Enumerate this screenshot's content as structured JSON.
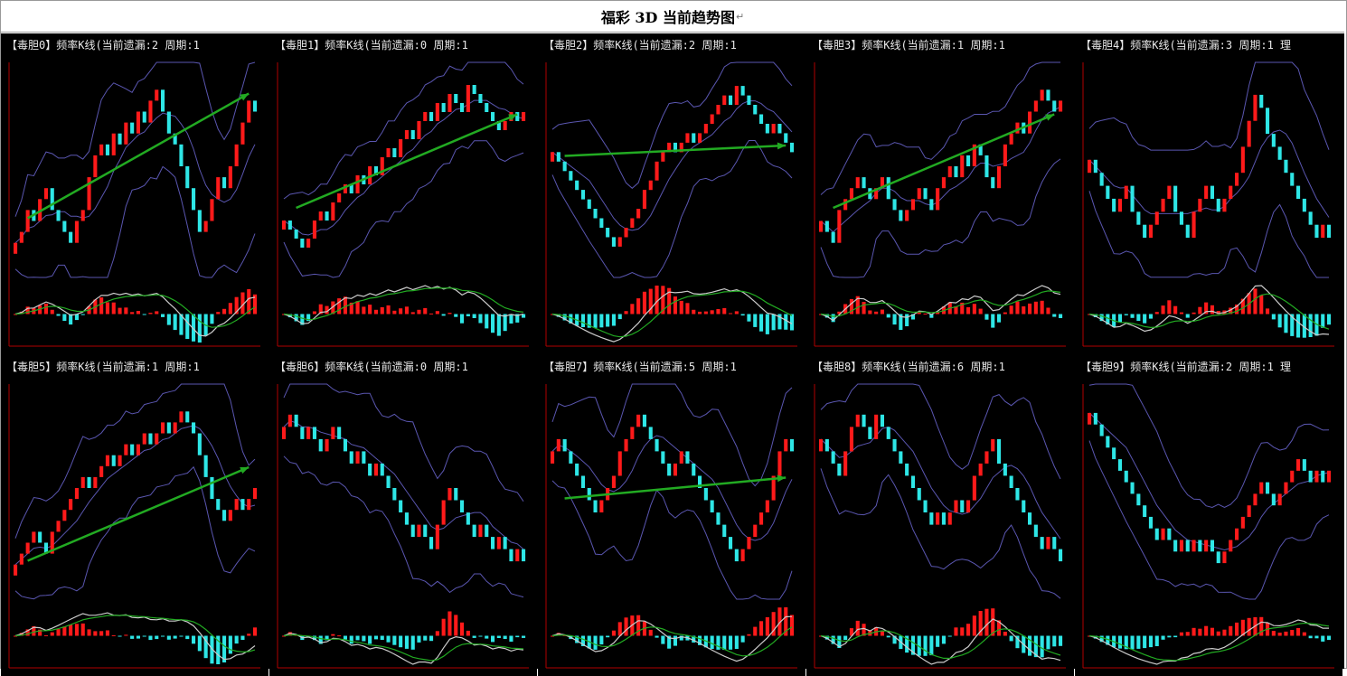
{
  "header": {
    "title": "福彩 3D 当前趋势图",
    "return_mark": "↵"
  },
  "colors": {
    "background": "#000000",
    "up": "#ff1a1a",
    "down": "#2ee6e6",
    "band": "#5a56b0",
    "trend_arrow": "#22aa22",
    "macd_dif": "#cccccc",
    "macd_dea": "#22aa22",
    "axis": "#b00000"
  },
  "chart_data": [
    {
      "type": "candlestick",
      "title": "【毒胆0】频率K线(当前遗漏:2 周期:1",
      "close": [
        3,
        4,
        6,
        5,
        7,
        8,
        6,
        5,
        4,
        3,
        5,
        6,
        9,
        11,
        12,
        11,
        13,
        12,
        14,
        13,
        15,
        14,
        16,
        17,
        15,
        13,
        12,
        10,
        8,
        6,
        4,
        5,
        7,
        9,
        8,
        10,
        12,
        14,
        16,
        15
      ],
      "trend_start": 0.25,
      "trend_end": 0.85
    },
    {
      "type": "candlestick",
      "title": "【毒胆1】频率K线(当前遗漏:0 周期:1",
      "close": [
        5,
        4,
        3,
        2,
        3,
        5,
        6,
        5,
        7,
        8,
        9,
        8,
        10,
        9,
        11,
        10,
        12,
        13,
        12,
        14,
        15,
        14,
        16,
        17,
        16,
        18,
        17,
        19,
        18,
        17,
        20,
        19,
        18,
        17,
        16,
        15,
        16,
        17,
        16,
        17
      ],
      "trend_start": 0.3,
      "trend_end": 0.75
    },
    {
      "type": "candlestick",
      "title": "【毒胆2】频率K线(当前遗漏:2 周期:1",
      "close": [
        12,
        11,
        10,
        9,
        8,
        7,
        6,
        5,
        4,
        3,
        2,
        3,
        4,
        5,
        6,
        8,
        9,
        11,
        12,
        13,
        12,
        13,
        14,
        13,
        14,
        15,
        16,
        17,
        18,
        17,
        19,
        18,
        17,
        16,
        15,
        14,
        15,
        14,
        13,
        12
      ],
      "trend_start": 0.55,
      "trend_end": 0.6
    },
    {
      "type": "candlestick",
      "title": "【毒胆3】频率K线(当前遗漏:1 周期:1",
      "close": [
        5,
        4,
        3,
        6,
        7,
        8,
        9,
        8,
        7,
        8,
        9,
        7,
        6,
        5,
        6,
        7,
        8,
        7,
        6,
        8,
        9,
        10,
        9,
        11,
        10,
        12,
        11,
        9,
        8,
        10,
        12,
        13,
        14,
        13,
        15,
        16,
        17,
        16,
        15,
        16
      ],
      "trend_start": 0.3,
      "trend_end": 0.75
    },
    {
      "type": "candlestick",
      "title": "【毒胆4】频率K线(当前遗漏:3 周期:1 理",
      "close": [
        12,
        11,
        10,
        9,
        8,
        9,
        10,
        8,
        7,
        6,
        7,
        8,
        9,
        10,
        8,
        7,
        6,
        8,
        9,
        10,
        9,
        8,
        9,
        10,
        11,
        13,
        15,
        17,
        16,
        14,
        13,
        12,
        11,
        10,
        9,
        8,
        7,
        6,
        7,
        6
      ],
      "trend_start": 0,
      "trend_end": 0
    },
    {
      "type": "candlestick",
      "title": "【毒胆5】频率K线(当前遗漏:1 周期:1",
      "close": [
        4,
        5,
        6,
        7,
        6,
        5,
        7,
        8,
        9,
        10,
        11,
        12,
        11,
        12,
        13,
        14,
        13,
        14,
        15,
        14,
        15,
        16,
        15,
        16,
        17,
        16,
        17,
        18,
        17,
        16,
        14,
        12,
        10,
        9,
        8,
        9,
        10,
        9,
        10,
        11
      ],
      "trend_start": 0.15,
      "trend_end": 0.6
    },
    {
      "type": "candlestick",
      "title": "【毒胆6】频率K线(当前遗漏:0 周期:1",
      "close": [
        14,
        15,
        14,
        13,
        14,
        13,
        12,
        13,
        14,
        13,
        12,
        11,
        12,
        11,
        10,
        11,
        10,
        9,
        8,
        7,
        6,
        5,
        6,
        5,
        4,
        6,
        8,
        9,
        8,
        7,
        6,
        5,
        6,
        5,
        4,
        5,
        4,
        3,
        4,
        3
      ],
      "trend_start": 0,
      "trend_end": 0
    },
    {
      "type": "candlestick",
      "title": "【毒胆7】频率K线(当前遗漏:5 周期:1",
      "close": [
        12,
        13,
        12,
        11,
        10,
        9,
        8,
        7,
        8,
        9,
        10,
        12,
        13,
        14,
        15,
        14,
        13,
        12,
        11,
        10,
        11,
        12,
        11,
        10,
        9,
        8,
        7,
        6,
        5,
        4,
        3,
        4,
        5,
        6,
        7,
        8,
        10,
        12,
        13,
        12
      ],
      "trend_start": 0.45,
      "trend_end": 0.55
    },
    {
      "type": "candlestick",
      "title": "【毒胆8】频率K线(当前遗漏:6 周期:1",
      "close": [
        14,
        13,
        12,
        11,
        13,
        15,
        16,
        15,
        14,
        16,
        15,
        14,
        13,
        12,
        11,
        10,
        9,
        8,
        7,
        8,
        7,
        8,
        9,
        8,
        9,
        11,
        12,
        13,
        14,
        12,
        11,
        10,
        9,
        8,
        7,
        6,
        5,
        6,
        5,
        4
      ],
      "trend_start": 0,
      "trend_end": 0
    },
    {
      "type": "candlestick",
      "title": "【毒胆9】频率K线(当前遗漏:2 周期:1 理",
      "close": [
        16,
        15,
        14,
        13,
        12,
        11,
        10,
        9,
        8,
        7,
        6,
        5,
        6,
        5,
        4,
        5,
        4,
        5,
        4,
        5,
        4,
        3,
        4,
        5,
        6,
        7,
        8,
        9,
        10,
        9,
        8,
        9,
        10,
        11,
        12,
        11,
        10,
        11,
        10,
        11
      ],
      "trend_start": 0,
      "trend_end": 0
    }
  ]
}
